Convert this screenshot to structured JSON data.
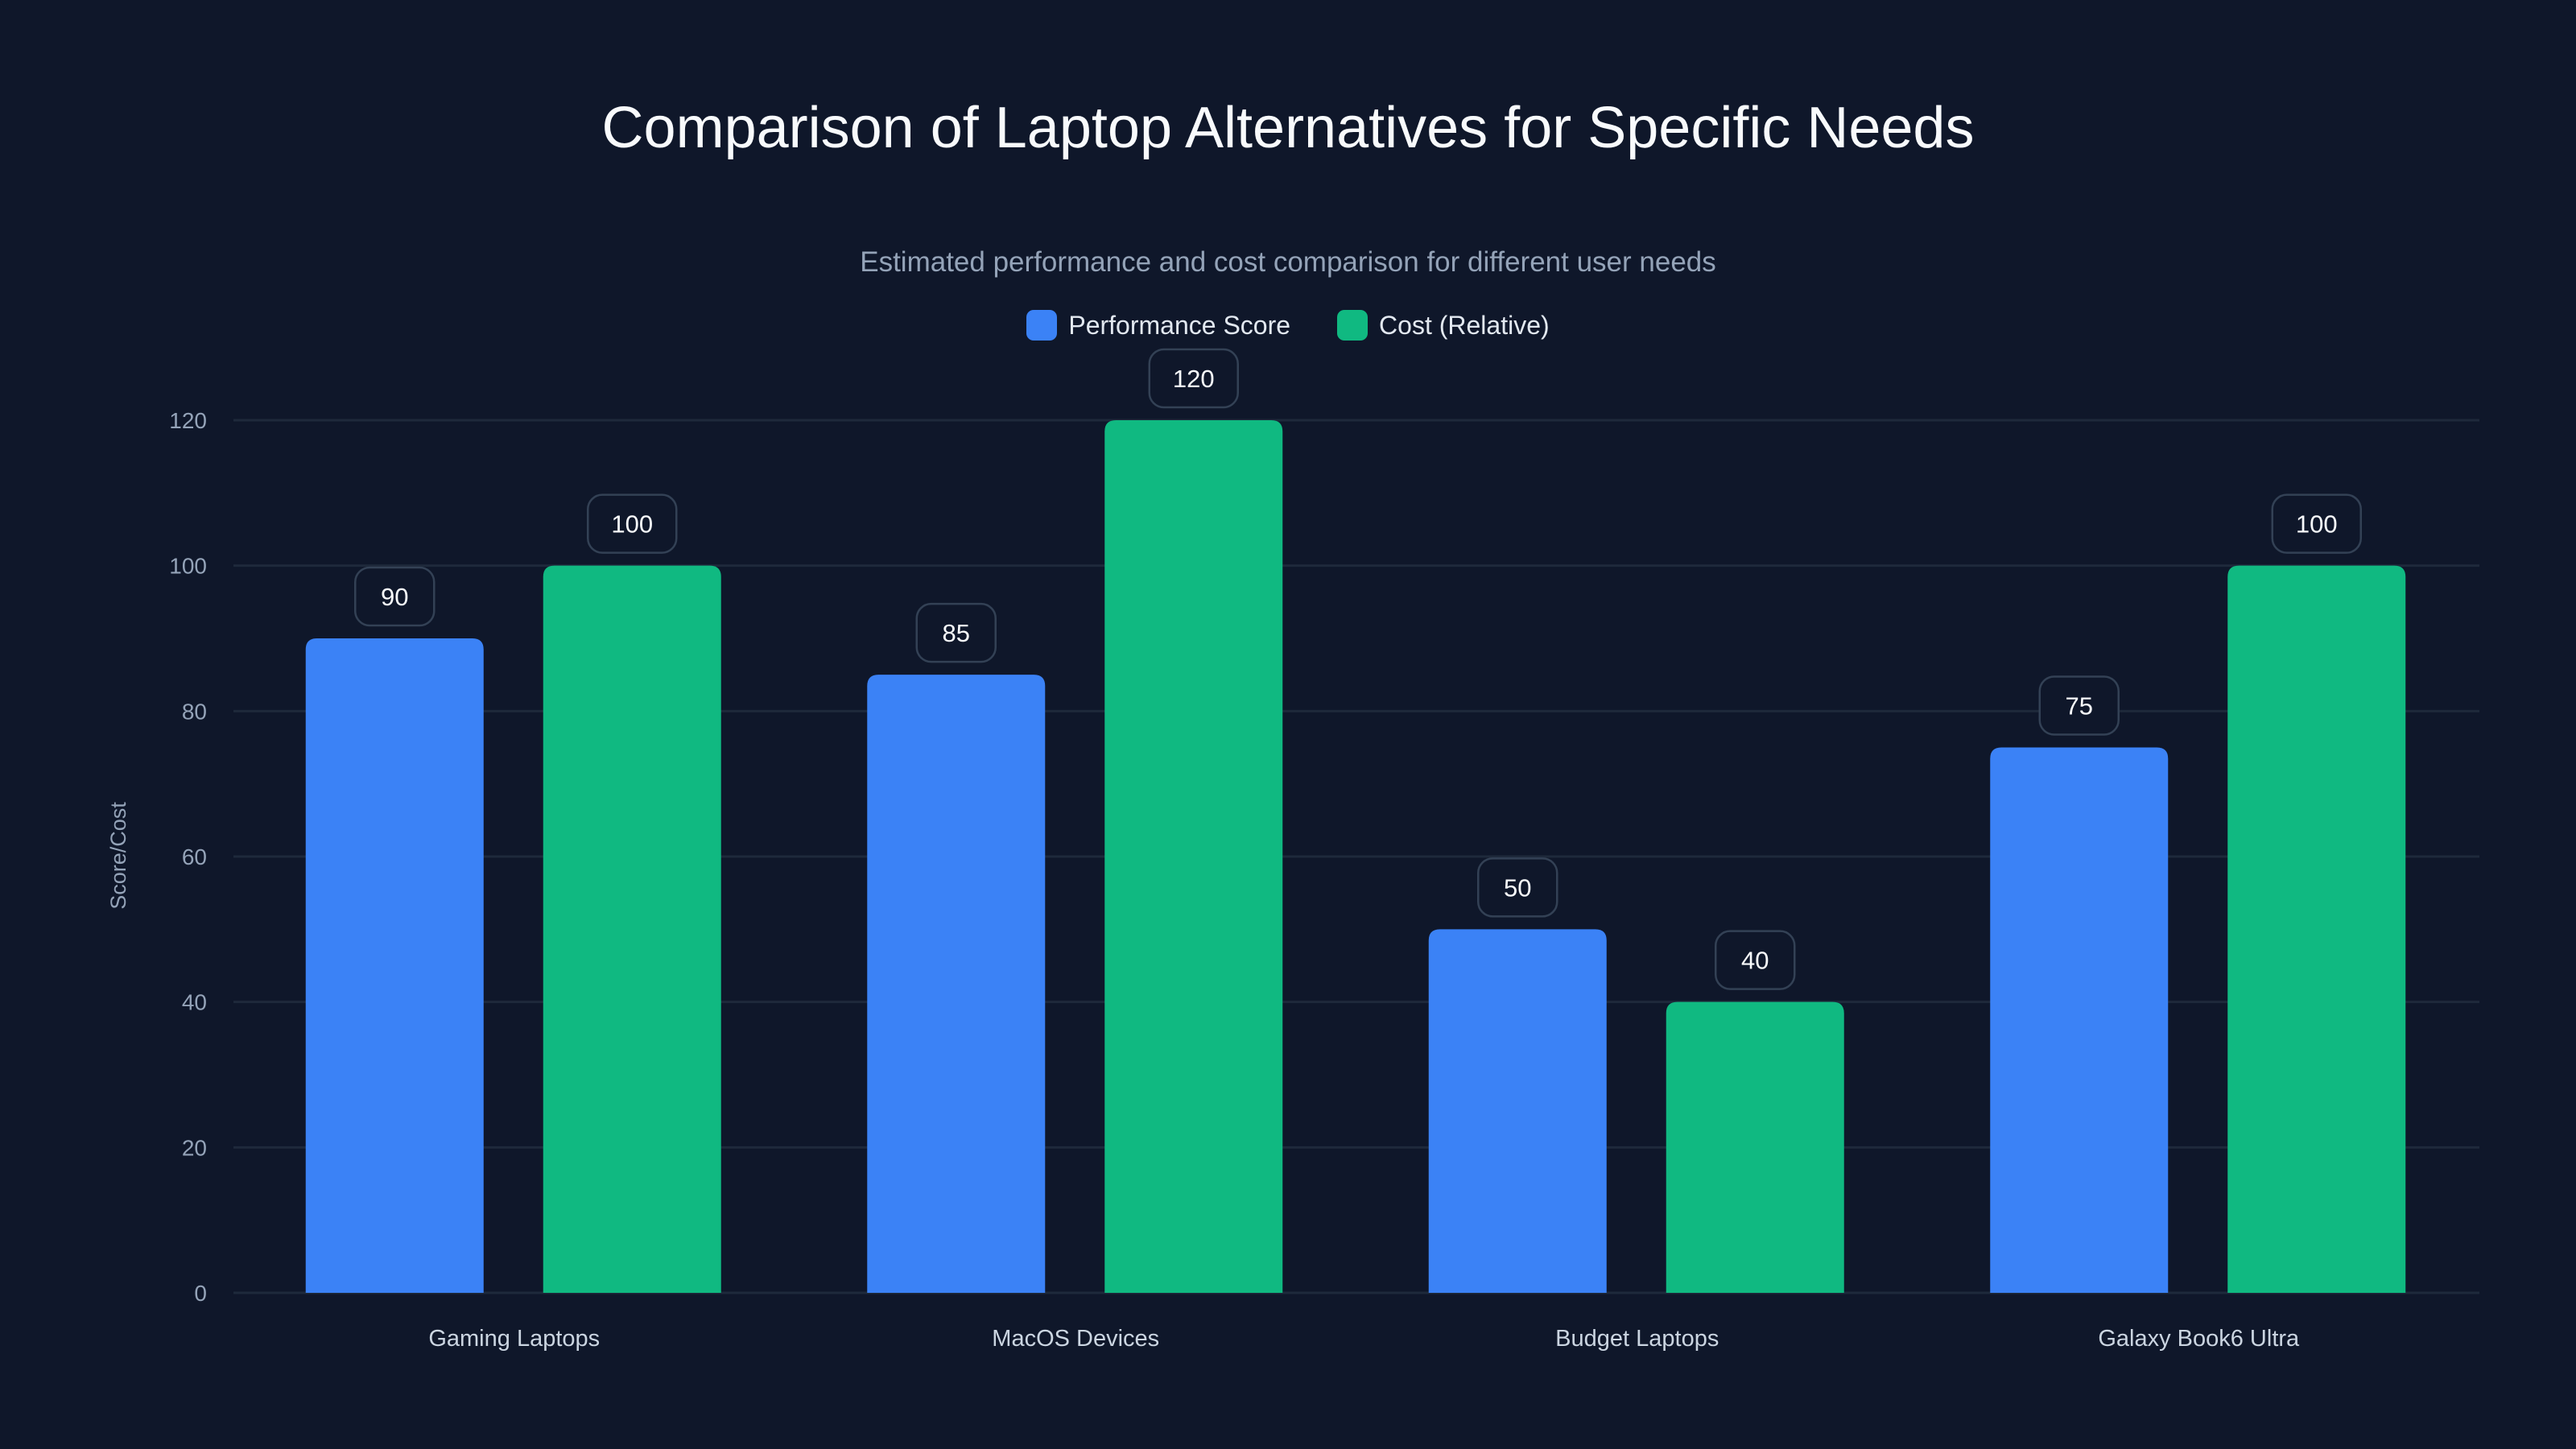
{
  "chart_data": {
    "type": "bar",
    "title": "Comparison of Laptop Alternatives for Specific Needs",
    "subtitle": "Estimated performance and cost comparison for different user needs",
    "xlabel": "",
    "ylabel": "Score/Cost",
    "ylim": [
      0,
      120
    ],
    "yticks": [
      0,
      20,
      40,
      60,
      80,
      100,
      120
    ],
    "grid": true,
    "legend_position": "top-center",
    "categories": [
      "Gaming Laptops",
      "MacOS Devices",
      "Budget Laptops",
      "Galaxy Book6 Ultra"
    ],
    "series": [
      {
        "name": "Performance Score",
        "color": "#3b82f6",
        "values": [
          90,
          85,
          50,
          75
        ]
      },
      {
        "name": "Cost (Relative)",
        "color": "#10b981",
        "values": [
          100,
          120,
          40,
          100
        ]
      }
    ]
  }
}
